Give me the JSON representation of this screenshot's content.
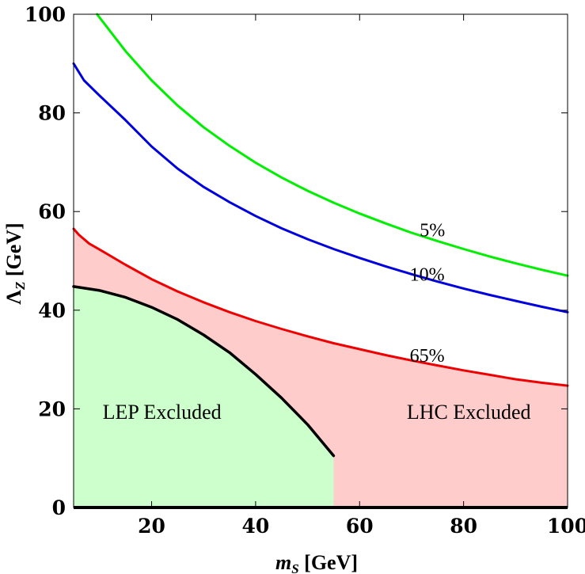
{
  "chart_data": {
    "type": "line",
    "xlabel": {
      "main": "m",
      "sub": "S",
      "unit": " [GeV]"
    },
    "ylabel": {
      "main": "Λ",
      "sub": "Z",
      "unit": " [GeV]"
    },
    "xlim": [
      5,
      100
    ],
    "ylim": [
      0,
      100
    ],
    "xticks": [
      20,
      40,
      60,
      80,
      100
    ],
    "yticks": [
      0,
      20,
      40,
      60,
      80,
      100
    ],
    "grid": false,
    "colors": {
      "green_curve": "#00ee00",
      "blue_curve": "#0000dd",
      "red_curve": "#ee0000",
      "lep_boundary": "#000000",
      "lep_fill": "#ccffcc",
      "lhc_fill": "#ffcccc"
    },
    "series": [
      {
        "name": "5%",
        "color": "#00ee00",
        "x": [
          9.5,
          15,
          20,
          25,
          30,
          35,
          40,
          45,
          50,
          55,
          60,
          65,
          70,
          75,
          80,
          85,
          90,
          95,
          100
        ],
        "y": [
          100,
          92.5,
          86.6,
          81.5,
          77.1,
          73.3,
          69.9,
          66.9,
          64.2,
          61.8,
          59.6,
          57.6,
          55.7,
          54.0,
          52.4,
          50.9,
          49.5,
          48.2,
          47.0
        ]
      },
      {
        "name": "10%",
        "color": "#0000dd",
        "x": [
          5,
          7,
          10,
          15,
          20,
          25,
          30,
          35,
          40,
          45,
          50,
          55,
          60,
          65,
          70,
          75,
          80,
          85,
          90,
          95,
          100
        ],
        "y": [
          90,
          86.6,
          83.5,
          78.5,
          73.2,
          68.7,
          65.0,
          61.9,
          59.1,
          56.6,
          54.4,
          52.4,
          50.6,
          48.9,
          47.3,
          45.8,
          44.4,
          43.1,
          41.9,
          40.7,
          39.6
        ]
      },
      {
        "name": "65%",
        "color": "#ee0000",
        "x": [
          5,
          6,
          8,
          10,
          15,
          20,
          25,
          30,
          35,
          40,
          45,
          50,
          55,
          60,
          65,
          70,
          75,
          80,
          85,
          90,
          95,
          100
        ],
        "y": [
          56.5,
          55.3,
          53.5,
          52.3,
          49.2,
          46.3,
          43.8,
          41.6,
          39.6,
          37.8,
          36.2,
          34.7,
          33.3,
          32.1,
          30.9,
          29.8,
          28.8,
          27.8,
          26.9,
          26.0,
          25.3,
          24.7
        ]
      }
    ],
    "boundary": {
      "name": "LEP boundary",
      "color": "#000000",
      "x": [
        5,
        10,
        15,
        20,
        25,
        30,
        35,
        40,
        45,
        50,
        55
      ],
      "y": [
        44.8,
        44.0,
        42.6,
        40.6,
        38.1,
        35.0,
        31.4,
        27.0,
        22.2,
        16.8,
        10.5
      ]
    },
    "regions": [
      {
        "label": "LEP Excluded",
        "color": "#ccffcc"
      },
      {
        "label": "LHC Excluded",
        "color": "#ffcccc"
      }
    ],
    "annotations": [
      {
        "text": "5%",
        "x": 74,
        "y": 55
      },
      {
        "text": "10%",
        "x": 73,
        "y": 46
      },
      {
        "text": "65%",
        "x": 73,
        "y": 29.5
      }
    ]
  }
}
